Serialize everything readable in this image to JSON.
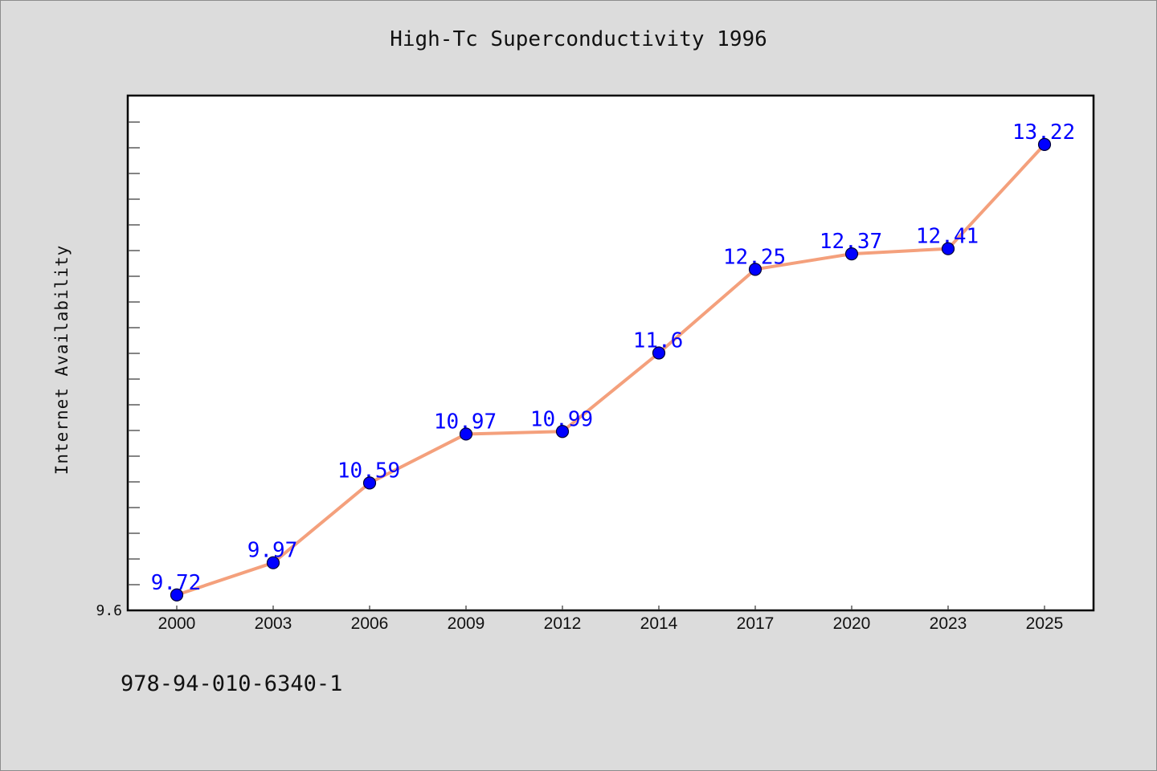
{
  "chart_data": {
    "type": "line",
    "title": "High-Tc Superconductivity 1996",
    "xlabel": "",
    "ylabel": "Internet Availability",
    "categories": [
      "2000",
      "2003",
      "2006",
      "2009",
      "2012",
      "2014",
      "2017",
      "2020",
      "2023",
      "2025"
    ],
    "values": [
      9.72,
      9.97,
      10.59,
      10.97,
      10.99,
      11.6,
      12.25,
      12.37,
      12.41,
      13.22
    ],
    "data_labels": [
      "9.72",
      "9.97",
      "10.59",
      "10.97",
      "10.99",
      "11.6",
      "12.25",
      "12.37",
      "12.41",
      "13.22"
    ],
    "y_tick_label": "9.6",
    "ylim": [
      9.6,
      13.6
    ],
    "grid": false,
    "line_color": "#f4a07c",
    "marker_color": "#0000ff",
    "label_color": "#0000ff"
  },
  "footer": {
    "code": "978-94-010-6340-1"
  }
}
